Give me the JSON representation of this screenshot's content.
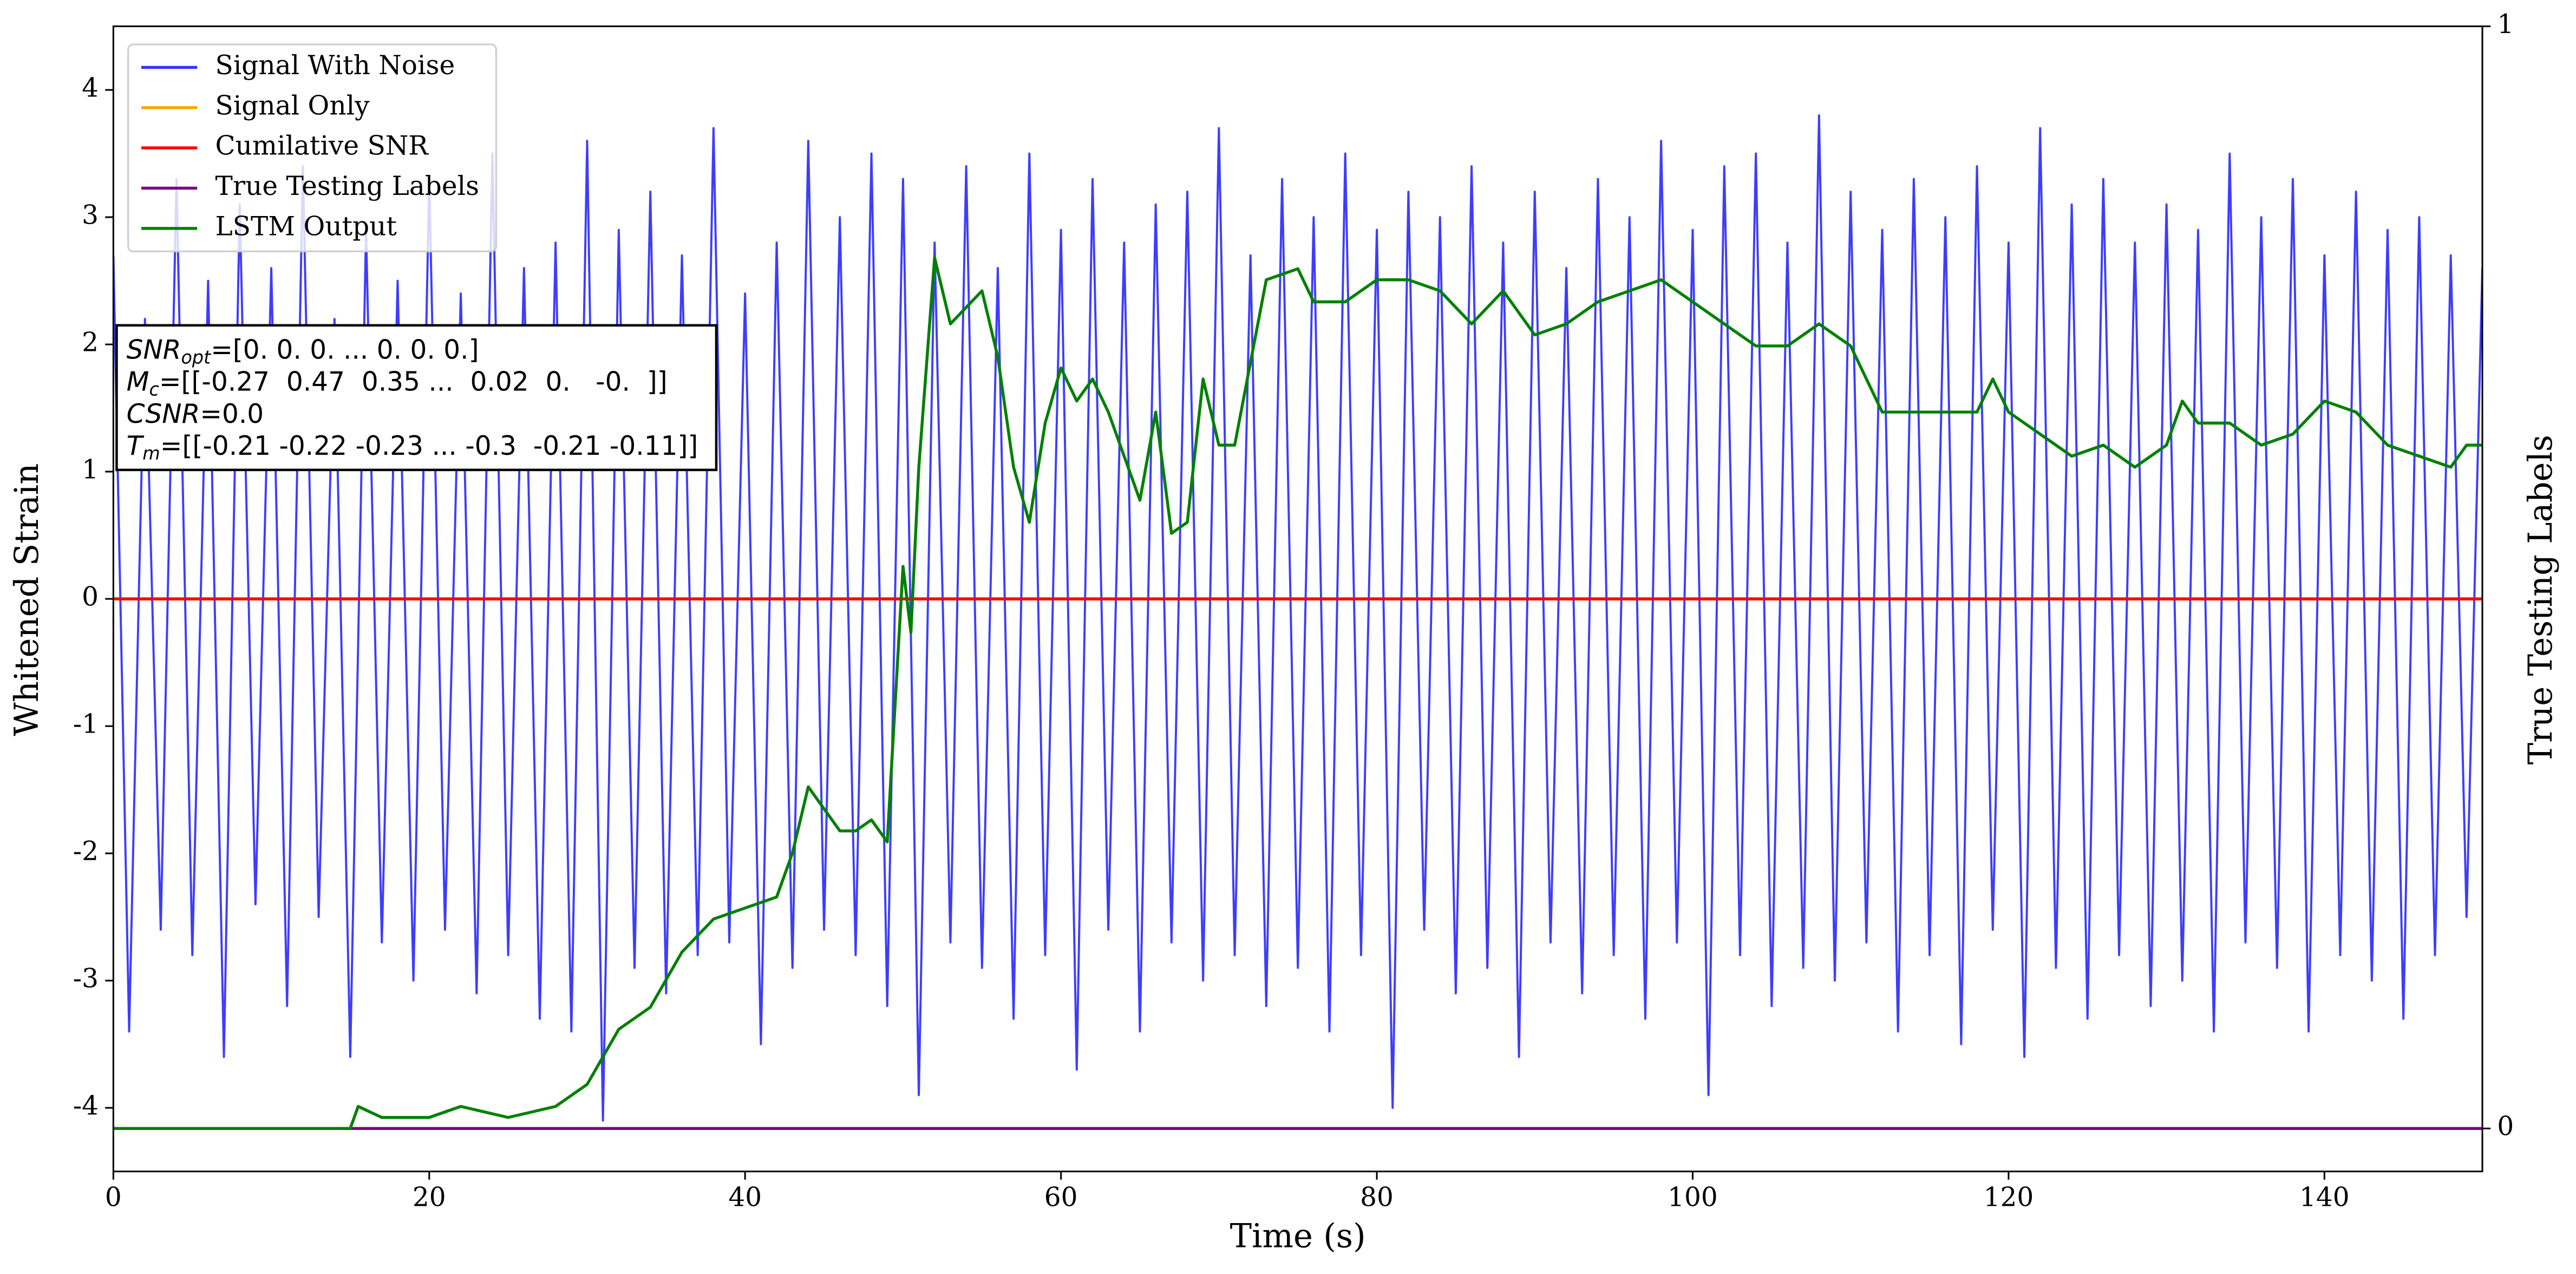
{
  "chart_data": {
    "type": "line",
    "xlabel": "Time (s)",
    "ylabel": "Whitened Strain",
    "y2label": "True Testing Labels",
    "xlim": [
      0,
      150
    ],
    "xticks": [
      0,
      20,
      40,
      60,
      80,
      100,
      120,
      140
    ],
    "ylim": [
      -4.5,
      4.5
    ],
    "yticks": [
      -4,
      -3,
      -2,
      -1,
      0,
      1,
      2,
      3,
      4
    ],
    "y2lim": [
      -0.039,
      1
    ],
    "y2ticks": [
      0,
      1
    ],
    "legend": "upper left",
    "annotation": [
      {
        "symbol": "SNR",
        "sub": "opt",
        "text": "=[0. 0. 0. ... 0. 0. 0.]"
      },
      {
        "symbol": "M",
        "sub": "c",
        "text": "=[[-0.27  0.47  0.35 ...  0.02  0.   -0.  ]]"
      },
      {
        "symbol": "CSNR",
        "text": "=0.0"
      },
      {
        "symbol": "T",
        "sub": "m",
        "text": "=[[-0.21 -0.22 -0.23 ... -0.3  -0.21 -0.11]]"
      }
    ],
    "series": [
      {
        "name": "Signal With Noise",
        "color": "#3333ff",
        "x": [
          0,
          1,
          2,
          3,
          4,
          5,
          6,
          7,
          8,
          9,
          10,
          11,
          12,
          13,
          14,
          15,
          16,
          17,
          18,
          19,
          20,
          21,
          22,
          23,
          24,
          25,
          26,
          27,
          28,
          29,
          30,
          31,
          32,
          33,
          34,
          35,
          36,
          37,
          38,
          39,
          40,
          41,
          42,
          43,
          44,
          45,
          46,
          47,
          48,
          49,
          50,
          51,
          52,
          53,
          54,
          55,
          56,
          57,
          58,
          59,
          60,
          61,
          62,
          63,
          64,
          65,
          66,
          67,
          68,
          69,
          70,
          71,
          72,
          73,
          74,
          75,
          76,
          77,
          78,
          79,
          80,
          81,
          82,
          83,
          84,
          85,
          86,
          87,
          88,
          89,
          90,
          91,
          92,
          93,
          94,
          95,
          96,
          97,
          98,
          99,
          100,
          101,
          102,
          103,
          104,
          105,
          106,
          107,
          108,
          109,
          110,
          111,
          112,
          113,
          114,
          115,
          116,
          117,
          118,
          119,
          120,
          121,
          122,
          123,
          124,
          125,
          126,
          127,
          128,
          129,
          130,
          131,
          132,
          133,
          134,
          135,
          136,
          137,
          138,
          139,
          140,
          141,
          142,
          143,
          144,
          145,
          146,
          147,
          148,
          149,
          150
        ],
        "values": [
          2.7,
          -3.4,
          2.2,
          -2.6,
          3.3,
          -2.8,
          2.5,
          -3.6,
          3.1,
          -2.4,
          2.6,
          -3.2,
          3.4,
          -2.5,
          2.2,
          -3.6,
          2.9,
          -2.7,
          2.5,
          -3.0,
          3.3,
          -2.6,
          2.4,
          -3.1,
          3.5,
          -2.8,
          2.6,
          -3.3,
          2.8,
          -3.4,
          3.6,
          -4.1,
          2.9,
          -2.9,
          3.2,
          -3.1,
          2.7,
          -2.8,
          3.7,
          -2.7,
          2.4,
          -3.5,
          2.8,
          -2.9,
          3.6,
          -2.6,
          3.0,
          -2.8,
          3.5,
          -3.2,
          3.3,
          -3.9,
          2.8,
          -2.7,
          3.4,
          -2.9,
          2.6,
          -3.3,
          3.5,
          -2.8,
          2.9,
          -3.7,
          3.3,
          -2.6,
          2.8,
          -3.4,
          3.1,
          -2.7,
          3.2,
          -3.0,
          3.7,
          -2.8,
          2.7,
          -3.2,
          3.3,
          -2.9,
          3.0,
          -3.4,
          3.5,
          -2.8,
          2.9,
          -4.0,
          3.2,
          -2.6,
          3.0,
          -3.1,
          3.4,
          -2.9,
          2.8,
          -3.6,
          3.2,
          -2.7,
          2.6,
          -3.1,
          3.3,
          -2.8,
          3.0,
          -3.3,
          3.6,
          -2.7,
          2.9,
          -3.9,
          3.4,
          -2.8,
          3.5,
          -3.2,
          2.8,
          -2.9,
          3.8,
          -3.0,
          3.2,
          -2.7,
          2.9,
          -3.4,
          3.3,
          -2.8,
          3.0,
          -3.5,
          3.4,
          -2.6,
          2.8,
          -3.6,
          3.7,
          -2.9,
          3.1,
          -3.3,
          3.3,
          -2.8,
          2.8,
          -3.2,
          3.1,
          -3.0,
          2.9,
          -3.4,
          3.5,
          -2.7,
          3.0,
          -2.9,
          3.3,
          -3.4,
          2.7,
          -2.8,
          3.2,
          -3.0,
          2.9,
          -3.3,
          3.0,
          -2.8,
          2.7,
          -2.5,
          2.6
        ]
      },
      {
        "name": "Signal Only",
        "color": "#ffa500",
        "x": [
          0,
          150
        ],
        "values": [
          0,
          0
        ]
      },
      {
        "name": "Cumilative SNR",
        "color": "#ff0000",
        "x": [
          0,
          150
        ],
        "values": [
          0,
          0
        ]
      },
      {
        "name": "True Testing Labels",
        "color": "#800080",
        "axis": "y2",
        "x": [
          0,
          150
        ],
        "values": [
          0,
          0
        ]
      },
      {
        "name": "LSTM Output",
        "color": "#008000",
        "axis": "y2",
        "x": [
          0,
          15,
          15.5,
          17,
          20,
          22,
          25,
          28,
          30,
          32,
          34,
          36,
          38,
          40,
          42,
          43,
          44,
          45,
          46,
          47,
          48,
          49,
          50,
          50.5,
          51,
          52,
          53,
          55,
          56,
          57,
          58,
          59,
          60,
          61,
          62,
          63,
          64,
          65,
          66,
          67,
          68,
          69,
          70,
          71,
          73,
          75,
          76,
          78,
          80,
          82,
          84,
          86,
          88,
          90,
          92,
          94,
          96,
          98,
          100,
          102,
          104,
          106,
          108,
          110,
          112,
          114,
          116,
          118,
          119,
          120,
          122,
          124,
          126,
          128,
          130,
          131,
          132,
          134,
          136,
          138,
          140,
          142,
          144,
          146,
          148,
          149,
          150
        ],
        "values": [
          0,
          0,
          0.02,
          0.01,
          0.01,
          0.02,
          0.01,
          0.02,
          0.04,
          0.09,
          0.11,
          0.16,
          0.19,
          0.2,
          0.21,
          0.25,
          0.31,
          0.29,
          0.27,
          0.27,
          0.28,
          0.26,
          0.51,
          0.45,
          0.6,
          0.79,
          0.73,
          0.76,
          0.7,
          0.6,
          0.55,
          0.64,
          0.69,
          0.66,
          0.68,
          0.65,
          0.61,
          0.57,
          0.65,
          0.54,
          0.55,
          0.68,
          0.62,
          0.62,
          0.77,
          0.78,
          0.75,
          0.75,
          0.77,
          0.77,
          0.76,
          0.73,
          0.76,
          0.72,
          0.73,
          0.75,
          0.76,
          0.77,
          0.75,
          0.73,
          0.71,
          0.71,
          0.73,
          0.71,
          0.65,
          0.65,
          0.65,
          0.65,
          0.68,
          0.65,
          0.63,
          0.61,
          0.62,
          0.6,
          0.62,
          0.66,
          0.64,
          0.64,
          0.62,
          0.63,
          0.66,
          0.65,
          0.62,
          0.61,
          0.6,
          0.62,
          0.62
        ]
      }
    ]
  }
}
